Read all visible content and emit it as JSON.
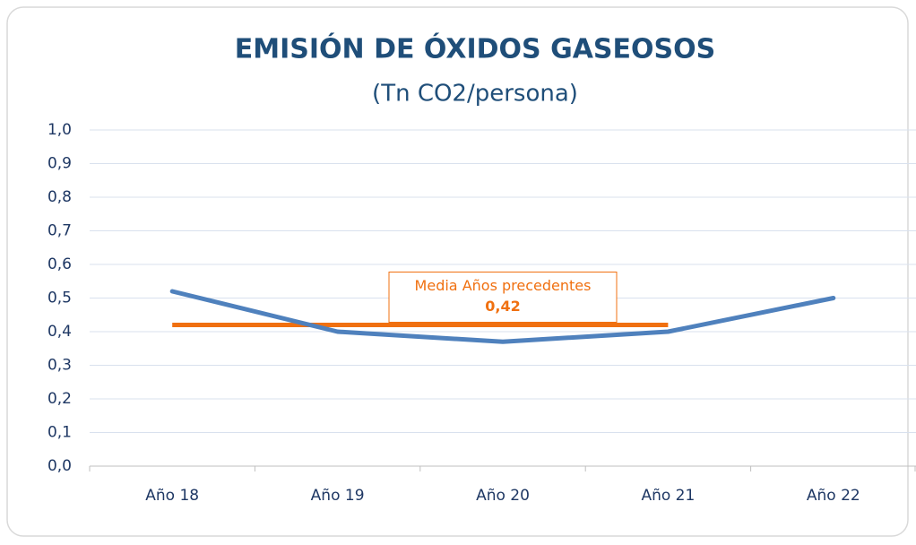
{
  "chart_data": {
    "type": "line",
    "title": "EMISIÓN DE ÓXIDOS GASEOSOS",
    "subtitle": "(Tn CO2/persona)",
    "categories": [
      "Año 18",
      "Año 19",
      "Año 20",
      "Año 21",
      "Año 22"
    ],
    "series": [
      {
        "name": null,
        "color": "#4f81bd",
        "values": [
          0.52,
          0.4,
          0.37,
          0.4,
          0.5
        ]
      },
      {
        "name": "Media Años precedentes",
        "color": "#f07010",
        "values": [
          0.42,
          0.42,
          0.42,
          0.42,
          null
        ],
        "value_labels": [
          null,
          null,
          "0,42",
          null,
          null
        ]
      }
    ],
    "ylim": [
      0,
      1
    ],
    "yticks": [
      {
        "value": 0,
        "label": "0,0"
      },
      {
        "value": 0.1,
        "label": "0,1"
      },
      {
        "value": 0.2,
        "label": "0,2"
      },
      {
        "value": 0.3,
        "label": "0,3"
      },
      {
        "value": 0.4,
        "label": "0,4"
      },
      {
        "value": 0.5,
        "label": "0,5"
      },
      {
        "value": 0.6,
        "label": "0,6"
      },
      {
        "value": 0.7,
        "label": "0,7"
      },
      {
        "value": 0.8,
        "label": "0,8"
      },
      {
        "value": 0.9,
        "label": "0,9"
      },
      {
        "value": 1,
        "label": "1,0"
      }
    ],
    "grid": true
  }
}
